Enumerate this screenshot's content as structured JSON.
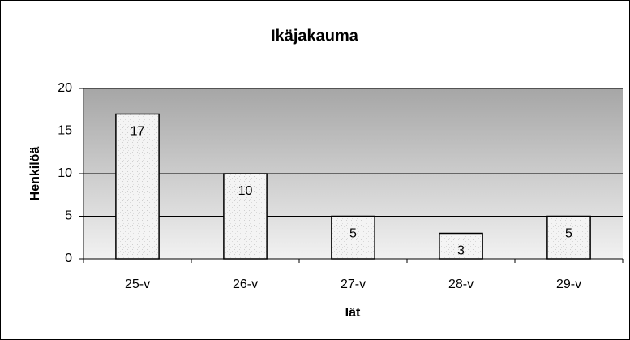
{
  "chart_data": {
    "type": "bar",
    "title": "Ikäjakauma",
    "x_label": "Iät",
    "y_label": "Henkilöä",
    "categories": [
      "25-v",
      "26-v",
      "27-v",
      "28-v",
      "29-v"
    ],
    "values": [
      17,
      10,
      5,
      3,
      5
    ],
    "ylim": [
      0,
      20
    ],
    "yticks": [
      0,
      5,
      10,
      15,
      20
    ],
    "grid": true,
    "color": "#f2f2f2"
  }
}
